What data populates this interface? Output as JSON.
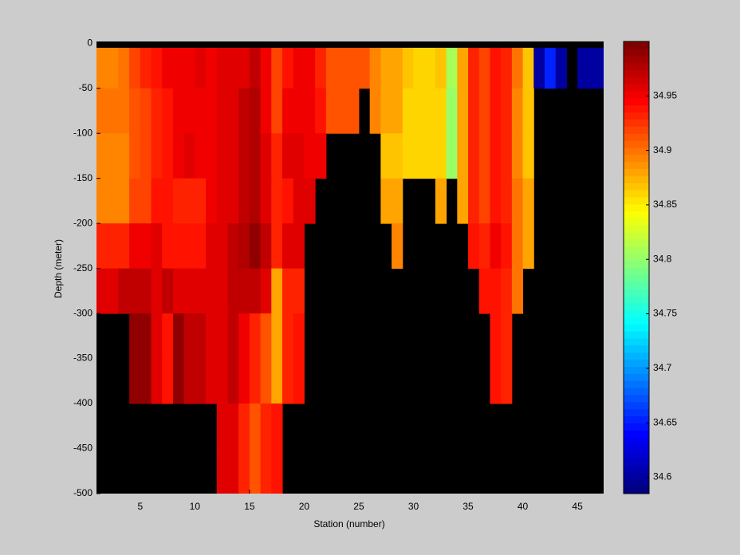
{
  "chart_data": {
    "type": "heatmap",
    "xlabel": "Station (number)",
    "ylabel": "Depth (meter)",
    "colormap": "jet",
    "clim": [
      34.585,
      35
    ],
    "colorbar_ticks": [
      34.6,
      34.65,
      34.7,
      34.75,
      34.8,
      34.85,
      34.9,
      34.95
    ],
    "xlim": [
      1,
      47.4
    ],
    "ylim": [
      -500,
      2
    ],
    "xticks": [
      5,
      10,
      15,
      20,
      25,
      30,
      35,
      40,
      45
    ],
    "yticks": [
      0,
      -50,
      -100,
      -150,
      -200,
      -250,
      -300,
      -350,
      -400,
      -450,
      -500
    ],
    "x": [
      1,
      2,
      3,
      4,
      5,
      6,
      7,
      8,
      9,
      10,
      11,
      12,
      13,
      14,
      15,
      16,
      17,
      18,
      19,
      20,
      21,
      22,
      23,
      24,
      25,
      26,
      27,
      28,
      29,
      30,
      31,
      32,
      33,
      34,
      35,
      36,
      37,
      38,
      39,
      40,
      41,
      42,
      43,
      44,
      45,
      46,
      47
    ],
    "y_edges": [
      -5,
      -50,
      -100,
      -150,
      -200,
      -250,
      -300,
      -350,
      -400,
      -450,
      -500
    ],
    "z": [
      [
        34.89,
        34.89,
        34.9,
        34.92,
        34.93,
        34.94,
        34.95,
        34.95,
        34.95,
        34.96,
        34.95,
        34.96,
        34.96,
        34.96,
        34.97,
        34.95,
        34.92,
        34.94,
        34.95,
        34.95,
        34.93,
        34.91,
        34.91,
        34.91,
        34.91,
        34.89,
        34.88,
        34.88,
        34.87,
        34.86,
        34.86,
        34.87,
        34.81,
        34.88,
        34.93,
        34.92,
        34.94,
        34.93,
        34.9,
        34.87,
        34.6,
        34.65,
        34.6,
        null,
        34.6,
        34.6,
        34.6
      ],
      [
        34.9,
        34.9,
        34.9,
        34.91,
        34.92,
        34.93,
        34.94,
        34.95,
        34.95,
        34.95,
        34.95,
        34.96,
        34.96,
        34.97,
        34.98,
        34.95,
        34.92,
        34.95,
        34.95,
        34.95,
        34.94,
        34.91,
        34.91,
        34.91,
        null,
        34.89,
        34.88,
        34.88,
        34.86,
        34.86,
        34.86,
        34.86,
        34.8,
        34.88,
        34.93,
        34.92,
        34.94,
        34.93,
        34.89,
        34.87,
        null,
        null,
        null,
        null,
        null,
        null,
        null
      ],
      [
        34.89,
        34.89,
        34.89,
        34.91,
        34.92,
        34.93,
        34.94,
        34.95,
        34.96,
        34.95,
        34.95,
        34.96,
        34.96,
        34.97,
        34.98,
        34.96,
        34.93,
        34.96,
        34.96,
        34.95,
        34.95,
        null,
        null,
        null,
        null,
        null,
        34.87,
        34.87,
        34.86,
        34.86,
        34.86,
        34.86,
        34.8,
        34.88,
        34.93,
        34.92,
        34.94,
        34.93,
        34.89,
        34.87,
        null,
        null,
        null,
        null,
        null,
        null,
        null
      ],
      [
        34.89,
        34.89,
        34.89,
        34.92,
        34.92,
        34.94,
        34.94,
        34.93,
        34.93,
        34.93,
        34.95,
        34.96,
        34.96,
        34.97,
        34.98,
        34.96,
        34.93,
        34.94,
        34.96,
        34.96,
        null,
        null,
        null,
        null,
        null,
        null,
        34.88,
        34.88,
        null,
        null,
        null,
        34.88,
        null,
        34.88,
        34.93,
        34.92,
        34.94,
        34.93,
        34.9,
        34.88,
        null,
        null,
        null,
        null,
        null,
        null,
        null
      ],
      [
        34.93,
        34.93,
        34.93,
        34.95,
        34.95,
        34.96,
        34.94,
        34.94,
        34.94,
        34.94,
        34.96,
        34.96,
        34.97,
        34.98,
        34.99,
        34.97,
        34.93,
        34.96,
        34.96,
        null,
        null,
        null,
        null,
        null,
        null,
        null,
        null,
        34.89,
        null,
        null,
        null,
        null,
        null,
        null,
        34.94,
        34.93,
        34.95,
        34.94,
        34.9,
        34.88,
        null,
        null,
        null,
        null,
        null,
        null,
        null
      ],
      [
        34.96,
        34.96,
        34.97,
        34.97,
        34.97,
        34.96,
        34.97,
        34.96,
        34.96,
        34.96,
        34.96,
        34.96,
        34.97,
        34.97,
        34.97,
        34.96,
        34.88,
        34.93,
        34.93,
        null,
        null,
        null,
        null,
        null,
        null,
        null,
        null,
        null,
        null,
        null,
        null,
        null,
        null,
        null,
        null,
        34.94,
        34.94,
        34.93,
        34.9,
        null,
        null,
        null,
        null,
        null,
        null,
        null,
        null
      ],
      [
        null,
        null,
        null,
        34.99,
        34.99,
        34.96,
        34.94,
        34.99,
        34.97,
        34.97,
        34.96,
        34.96,
        34.97,
        34.95,
        34.93,
        34.91,
        34.88,
        34.93,
        34.94,
        null,
        null,
        null,
        null,
        null,
        null,
        null,
        null,
        null,
        null,
        null,
        null,
        null,
        null,
        null,
        null,
        null,
        34.94,
        34.93,
        null,
        null,
        null,
        null,
        null,
        null,
        null,
        null,
        null
      ],
      [
        null,
        null,
        null,
        34.99,
        34.99,
        34.96,
        34.94,
        34.99,
        34.97,
        34.97,
        34.96,
        34.96,
        34.97,
        34.95,
        34.93,
        34.91,
        34.88,
        34.93,
        34.94,
        null,
        null,
        null,
        null,
        null,
        null,
        null,
        null,
        null,
        null,
        null,
        null,
        null,
        null,
        null,
        null,
        null,
        34.94,
        34.93,
        null,
        null,
        null,
        null,
        null,
        null,
        null,
        null,
        null
      ],
      [
        null,
        null,
        null,
        null,
        null,
        null,
        null,
        null,
        null,
        null,
        null,
        34.96,
        34.96,
        34.93,
        34.91,
        34.93,
        34.94,
        null,
        null,
        null,
        null,
        null,
        null,
        null,
        null,
        null,
        null,
        null,
        null,
        null,
        null,
        null,
        null,
        null,
        null,
        null,
        null,
        null,
        null,
        null,
        null,
        null,
        null,
        null,
        null,
        null,
        null
      ],
      [
        null,
        null,
        null,
        null,
        null,
        null,
        null,
        null,
        null,
        null,
        null,
        34.96,
        34.96,
        34.93,
        34.91,
        34.93,
        34.94,
        null,
        null,
        null,
        null,
        null,
        null,
        null,
        null,
        null,
        null,
        null,
        null,
        null,
        null,
        null,
        null,
        null,
        null,
        null,
        null,
        null,
        null,
        null,
        null,
        null,
        null,
        null,
        null,
        null,
        null
      ]
    ]
  }
}
